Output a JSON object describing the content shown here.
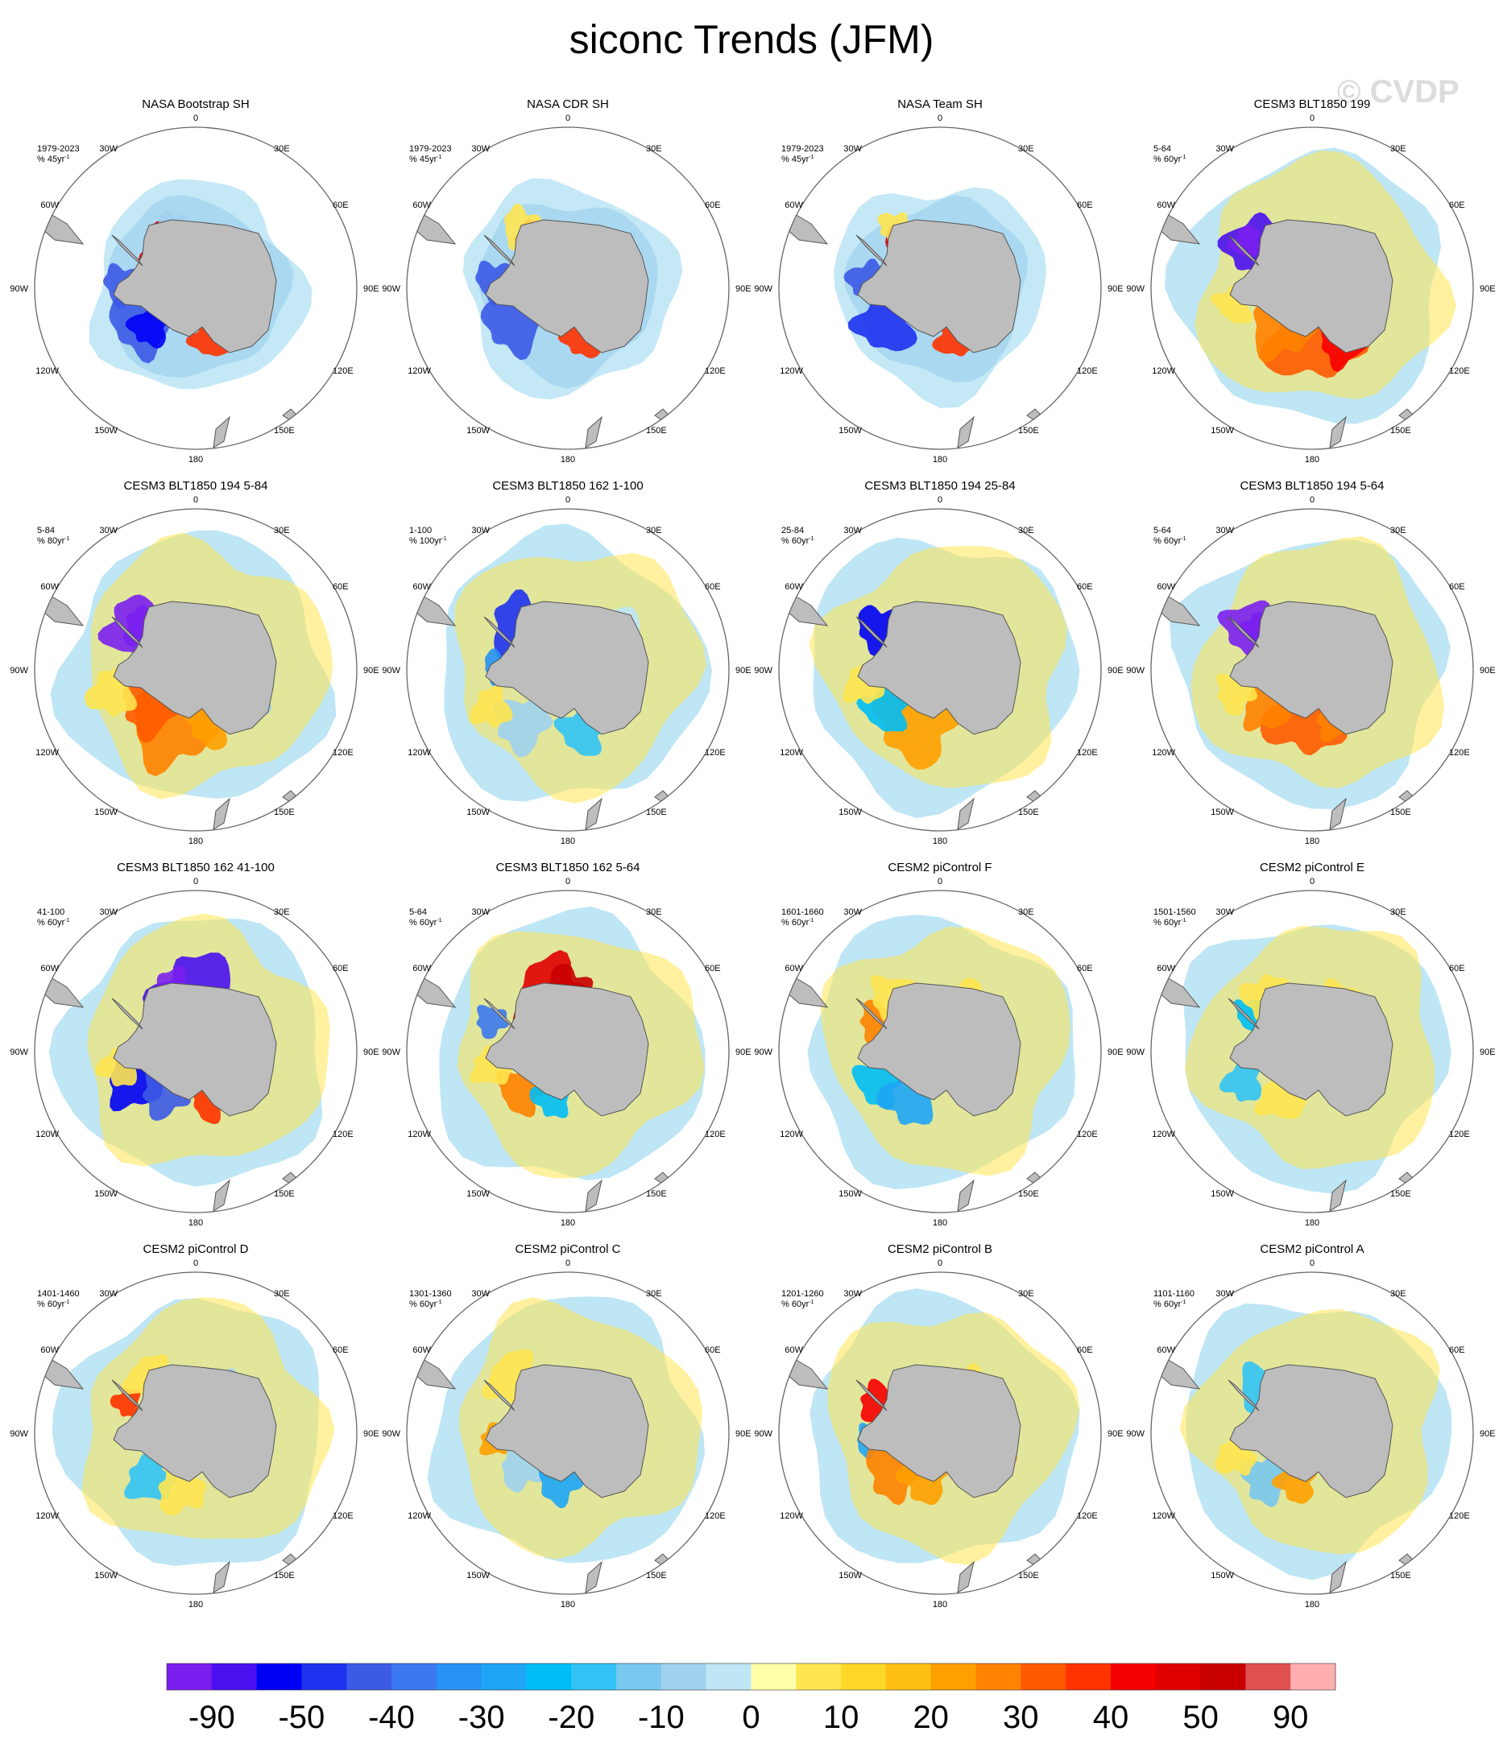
{
  "title": "siconc Trends (JFM)",
  "watermark": "© CVDP",
  "colors": {
    "land": "#bdbdbd",
    "coast": "#555555",
    "rim": "#666666"
  },
  "map_labels": {
    "top": "0",
    "bottom": "180",
    "upper_left": "30W",
    "upper_right": "30E",
    "mid_upper_left": "60W",
    "mid_upper_right": "60E",
    "left": "90W",
    "right": "90E",
    "mid_lower_left": "120W",
    "mid_lower_right": "120E",
    "lower_left": "150W",
    "lower_right": "150E"
  },
  "chart_data": {
    "type": "heatmap",
    "projection": "south polar stereographic",
    "variable": "siconc",
    "season": "JFM",
    "panels": [
      {
        "title": "NASA Bootstrap SH",
        "period": "1979-2023",
        "units": "% 45yr",
        "extent": "obs"
      },
      {
        "title": "NASA CDR SH",
        "period": "1979-2023",
        "units": "% 45yr",
        "extent": "obs"
      },
      {
        "title": "NASA Team SH",
        "period": "1979-2023",
        "units": "% 45yr",
        "extent": "obs"
      },
      {
        "title": "CESM3 BLT1850 199",
        "period": "5-64",
        "units": "% 60yr",
        "extent": "model"
      },
      {
        "title": "CESM3 BLT1850 194 5-84",
        "period": "5-84",
        "units": "% 80yr",
        "extent": "model"
      },
      {
        "title": "CESM3 BLT1850 162 1-100",
        "period": "1-100",
        "units": "% 100yr",
        "extent": "model"
      },
      {
        "title": "CESM3 BLT1850 194 25-84",
        "period": "25-84",
        "units": "% 60yr",
        "extent": "model"
      },
      {
        "title": "CESM3 BLT1850 194 5-64",
        "period": "5-64",
        "units": "% 60yr",
        "extent": "model"
      },
      {
        "title": "CESM3 BLT1850 162 41-100",
        "period": "41-100",
        "units": "% 60yr",
        "extent": "model"
      },
      {
        "title": "CESM3 BLT1850 162 5-64",
        "period": "5-64",
        "units": "% 60yr",
        "extent": "model"
      },
      {
        "title": "CESM2 piControl F",
        "period": "1601-1660",
        "units": "% 60yr",
        "extent": "model"
      },
      {
        "title": "CESM2 piControl E",
        "period": "1501-1560",
        "units": "% 60yr",
        "extent": "model"
      },
      {
        "title": "CESM2 piControl D",
        "period": "1401-1460",
        "units": "% 60yr",
        "extent": "model"
      },
      {
        "title": "CESM2 piControl C",
        "period": "1301-1360",
        "units": "% 60yr",
        "extent": "model"
      },
      {
        "title": "CESM2 piControl B",
        "period": "1201-1260",
        "units": "% 60yr",
        "extent": "model"
      },
      {
        "title": "CESM2 piControl A",
        "period": "1101-1160",
        "units": "% 60yr",
        "extent": "model"
      }
    ],
    "unit_superscript": "-1",
    "colorbar": {
      "colors": [
        "#7a1ff0",
        "#4a10f0",
        "#0000f5",
        "#1e32f0",
        "#3c5ae6",
        "#3c78f0",
        "#2891f5",
        "#1ea5f5",
        "#00bef5",
        "#32c3f5",
        "#78c8f0",
        "#a0d2f0",
        "#bee6f5",
        "#ffffaa",
        "#ffe650",
        "#ffd728",
        "#ffbe14",
        "#ffa000",
        "#ff8200",
        "#ff5a00",
        "#ff3200",
        "#f50000",
        "#e10000",
        "#c80000",
        "#e15050",
        "#ffafaf"
      ],
      "labels": [
        "-90",
        "-50",
        "-40",
        "-30",
        "-20",
        "-10",
        "0",
        "10",
        "20",
        "30",
        "40",
        "50",
        "90"
      ],
      "label_boundary_index": [
        1,
        3,
        5,
        7,
        9,
        11,
        13,
        15,
        17,
        19,
        21,
        23,
        25
      ]
    }
  }
}
